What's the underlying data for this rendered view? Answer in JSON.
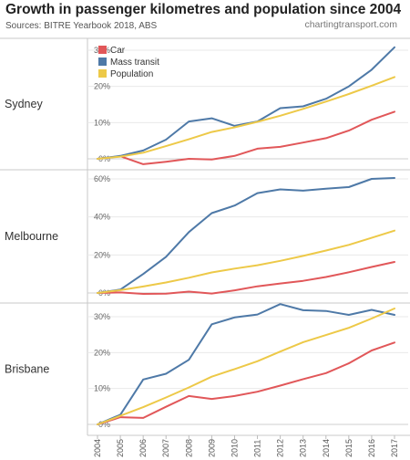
{
  "title": "Growth in passenger kilometres and population since 2004",
  "sources": "Sources: BITRE Yearbook 2018, ABS",
  "site": "chartingtransport.com",
  "chart_data": {
    "type": "line",
    "x": [
      "2004",
      "2005",
      "2006",
      "2007",
      "2008",
      "2009",
      "2010",
      "2011",
      "2012",
      "2013",
      "2014",
      "2015",
      "2016",
      "2017"
    ],
    "legend": {
      "placement": "top-left"
    },
    "colors": {
      "Car": "#e15759",
      "Mass transit": "#4e79a7",
      "Population": "#edc948"
    },
    "grid": true,
    "panels": [
      {
        "label": "Sydney",
        "ylim": [
          0,
          32
        ],
        "yticks": [
          "0%",
          "10%",
          "20%",
          "30%"
        ],
        "ytick_values": [
          0,
          10,
          20,
          30
        ],
        "series": [
          {
            "name": "Car",
            "values": [
              0,
              0.7,
              -1.5,
              -0.8,
              0,
              -0.2,
              0.8,
              2.8,
              3.3,
              4.5,
              5.7,
              7.8,
              10.8,
              13
            ]
          },
          {
            "name": "Mass transit",
            "values": [
              0,
              0.8,
              2.3,
              5.3,
              10.3,
              11.2,
              9.1,
              10.3,
              14,
              14.5,
              16.6,
              20,
              24.6,
              30.8
            ]
          },
          {
            "name": "Population",
            "values": [
              0,
              0.6,
              1.7,
              3.5,
              5.4,
              7.4,
              8.7,
              10.2,
              11.9,
              13.8,
              15.8,
              17.9,
              20.2,
              22.6
            ]
          }
        ]
      },
      {
        "label": "Melbourne",
        "ylim": [
          0,
          62
        ],
        "yticks": [
          "0%",
          "20%",
          "40%",
          "60%"
        ],
        "ytick_values": [
          0,
          20,
          40,
          60
        ],
        "series": [
          {
            "name": "Car",
            "values": [
              0,
              0.3,
              -0.5,
              -0.4,
              0.7,
              -0.3,
              1.4,
              3.5,
              5,
              6.4,
              8.4,
              10.9,
              13.7,
              16.3
            ]
          },
          {
            "name": "Mass transit",
            "values": [
              0,
              1.8,
              10,
              19,
              32,
              42,
              46,
              52.5,
              54.5,
              53.8,
              54.8,
              55.7,
              60,
              60.5
            ]
          },
          {
            "name": "Population",
            "values": [
              0,
              1.5,
              3.4,
              5.5,
              8,
              10.8,
              12.8,
              14.6,
              16.9,
              19.5,
              22.3,
              25.3,
              29,
              32.8
            ]
          }
        ]
      },
      {
        "label": "Brisbane",
        "ylim": [
          0,
          35
        ],
        "yticks": [
          "0%",
          "10%",
          "20%",
          "30%"
        ],
        "ytick_values": [
          0,
          10,
          20,
          30
        ],
        "series": [
          {
            "name": "Car",
            "values": [
              0,
              2,
              1.8,
              4.9,
              7.9,
              7.1,
              7.9,
              9.1,
              10.8,
              12.6,
              14.3,
              17,
              20.6,
              22.8
            ]
          },
          {
            "name": "Mass transit",
            "values": [
              0,
              2.7,
              12.5,
              14.1,
              18,
              27.9,
              29.8,
              30.6,
              33.5,
              31.8,
              31.6,
              30.5,
              31.9,
              30.5
            ]
          },
          {
            "name": "Population",
            "values": [
              0,
              2.4,
              4.8,
              7.5,
              10.3,
              13.3,
              15.4,
              17.6,
              20.3,
              22.9,
              24.9,
              26.9,
              29.5,
              32.3
            ]
          }
        ]
      }
    ]
  }
}
